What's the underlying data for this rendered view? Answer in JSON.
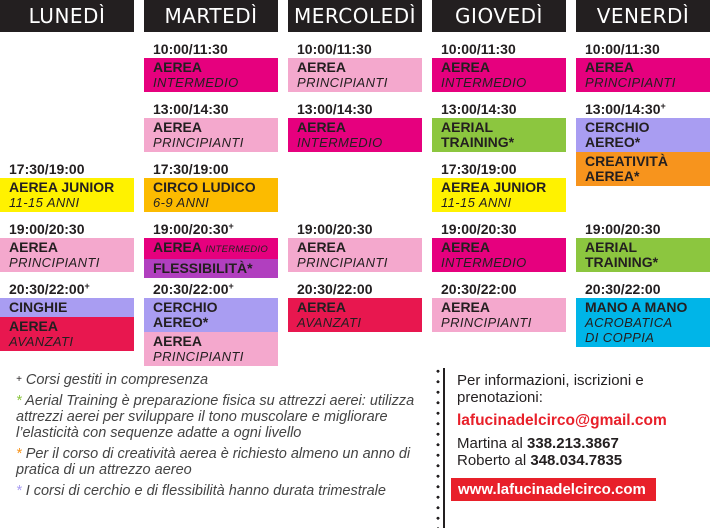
{
  "colors": {
    "magenta": "#e6007e",
    "pink": "#f4a8cd",
    "yellow": "#fff200",
    "gold": "#fcbb00",
    "crimson": "#e8174f",
    "lavender": "#a99df2",
    "purple": "#b13fbf",
    "green": "#8cc63f",
    "orange": "#f7941d",
    "cyan": "#00b5e8",
    "header": "#231f20",
    "red": "#e8202a"
  },
  "days": [
    {
      "name": "LUNEDÌ",
      "slots": [
        {
          "time": "17:30/19:00",
          "blocks": [
            {
              "title": "AEREA JUNIOR",
              "sub": "11-15 ANNI",
              "color": "yellow"
            }
          ]
        },
        {
          "time": "19:00/20:30",
          "blocks": [
            {
              "title": "AEREA",
              "sub": "PRINCIPIANTI",
              "color": "pink"
            }
          ]
        },
        {
          "time": "20:30/22:00",
          "sup": "+",
          "blocks": [
            {
              "title": "CINGHIE",
              "color": "lavender"
            },
            {
              "title": "AEREA",
              "sub": "AVANZATI",
              "color": "crimson"
            }
          ]
        }
      ]
    },
    {
      "name": "MARTEDÌ",
      "slots": [
        {
          "time": "10:00/11:30",
          "blocks": [
            {
              "title": "AEREA",
              "sub": "INTERMEDIO",
              "color": "magenta"
            }
          ]
        },
        {
          "time": "13:00/14:30",
          "blocks": [
            {
              "title": "AEREA",
              "sub": "PRINCIPIANTI",
              "color": "pink"
            }
          ]
        },
        {
          "time": "17:30/19:00",
          "blocks": [
            {
              "title": "CIRCO LUDICO",
              "sub": "6-9 ANNI",
              "color": "gold"
            }
          ]
        },
        {
          "time": "19:00/20:30",
          "sup": "+",
          "blocks": [
            {
              "title": "AEREA",
              "inline_sub": "INTERMEDIO",
              "color": "magenta"
            },
            {
              "title": "FLESSIBILITÀ*",
              "color": "purple"
            }
          ]
        },
        {
          "time": "20:30/22:00",
          "sup": "+",
          "blocks": [
            {
              "title": "CERCHIO AEREO*",
              "color": "lavender"
            },
            {
              "title": "AEREA",
              "sub": "PRINCIPIANTI",
              "color": "pink"
            }
          ]
        }
      ]
    },
    {
      "name": "MERCOLEDÌ",
      "slots": [
        {
          "time": "10:00/11:30",
          "blocks": [
            {
              "title": "AEREA",
              "sub": "PRINCIPIANTI",
              "color": "pink"
            }
          ]
        },
        {
          "time": "13:00/14:30",
          "blocks": [
            {
              "title": "AEREA",
              "sub": "INTERMEDIO",
              "color": "magenta"
            }
          ]
        },
        {
          "time": "19:00/20:30",
          "blocks": [
            {
              "title": "AEREA",
              "sub": "PRINCIPIANTI",
              "color": "pink"
            }
          ]
        },
        {
          "time": "20:30/22:00",
          "blocks": [
            {
              "title": "AEREA",
              "sub": "AVANZATI",
              "color": "crimson"
            }
          ]
        }
      ]
    },
    {
      "name": "GIOVEDÌ",
      "slots": [
        {
          "time": "10:00/11:30",
          "blocks": [
            {
              "title": "AEREA",
              "sub": "INTERMEDIO",
              "color": "magenta"
            }
          ]
        },
        {
          "time": "13:00/14:30",
          "blocks": [
            {
              "title": "AERIAL TRAINING*",
              "color": "green"
            }
          ]
        },
        {
          "time": "17:30/19:00",
          "blocks": [
            {
              "title": "AEREA JUNIOR",
              "sub": "11-15 ANNI",
              "color": "yellow"
            }
          ]
        },
        {
          "time": "19:00/20:30",
          "blocks": [
            {
              "title": "AEREA",
              "sub": "INTERMEDIO",
              "color": "magenta"
            }
          ]
        },
        {
          "time": "20:30/22:00",
          "blocks": [
            {
              "title": "AEREA",
              "sub": "PRINCIPIANTI",
              "color": "pink"
            }
          ]
        }
      ]
    },
    {
      "name": "VENERDÌ",
      "slots": [
        {
          "time": "10:00/11:30",
          "blocks": [
            {
              "title": "AEREA",
              "sub": "PRINCIPIANTI",
              "color": "magenta"
            }
          ]
        },
        {
          "time": "13:00/14:30",
          "sup": "+",
          "blocks": [
            {
              "title": "CERCHIO AEREO*",
              "color": "lavender"
            },
            {
              "title": "CREATIVITÀ AEREA*",
              "color": "orange"
            }
          ]
        },
        {
          "time": "19:00/20:30",
          "blocks": [
            {
              "title": "AERIAL TRAINING*",
              "color": "green"
            }
          ]
        },
        {
          "time": "20:30/22:00",
          "blocks": [
            {
              "title": "MANO A MANO",
              "sub": "ACROBATICA DI COPPIA",
              "color": "cyan"
            }
          ]
        }
      ]
    }
  ],
  "notes": [
    {
      "mark": "+",
      "mark_color": "#231f20",
      "text": "Corsi gestiti in compresenza"
    },
    {
      "mark": "*",
      "mark_color": "#8cc63f",
      "text": "Aerial Training è preparazione fisica su attrezzi aerei: utilizza attrezzi aerei per sviluppare il tono muscolare e migliorare l’elasticità con sequenze adatte a ogni livello"
    },
    {
      "mark": "*",
      "mark_color": "#f7941d",
      "text": "Per il corso di creatività aerea è richiesto almeno un anno di pratica di un attrezzo aereo"
    },
    {
      "mark": "*",
      "mark_color": "#a99df2",
      "text": "I corsi di cerchio e di flessibilità hanno durata trimestrale"
    }
  ],
  "info": {
    "intro": "Per informazioni, iscrizioni e prenotazioni:",
    "email": "lafucinadelcirco@gmail.com",
    "contacts": [
      {
        "name": "Martina al ",
        "phone": "338.213.3867"
      },
      {
        "name": "Roberto al ",
        "phone": "348.034.7835"
      }
    ],
    "website": "www.lafucinadelcirco.com"
  }
}
